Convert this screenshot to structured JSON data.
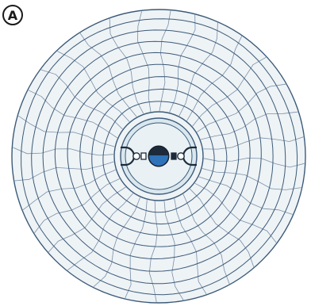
{
  "panel_label": "A",
  "colors": {
    "background": "#ffffff",
    "disc_fill": "#eef3f6",
    "ring_stroke": "#3c5a78",
    "radial_stroke": "#7990a8",
    "hub_fill": "#d9e7ee",
    "hub_stroke": "#3c5a78",
    "center_dark": "#1c2a3a",
    "center_blue": "#2e72b8"
  },
  "icons": [
    "spindle-hole-icon",
    "clamp-bracket-icon",
    "small-circle-icon",
    "small-square-icon"
  ]
}
